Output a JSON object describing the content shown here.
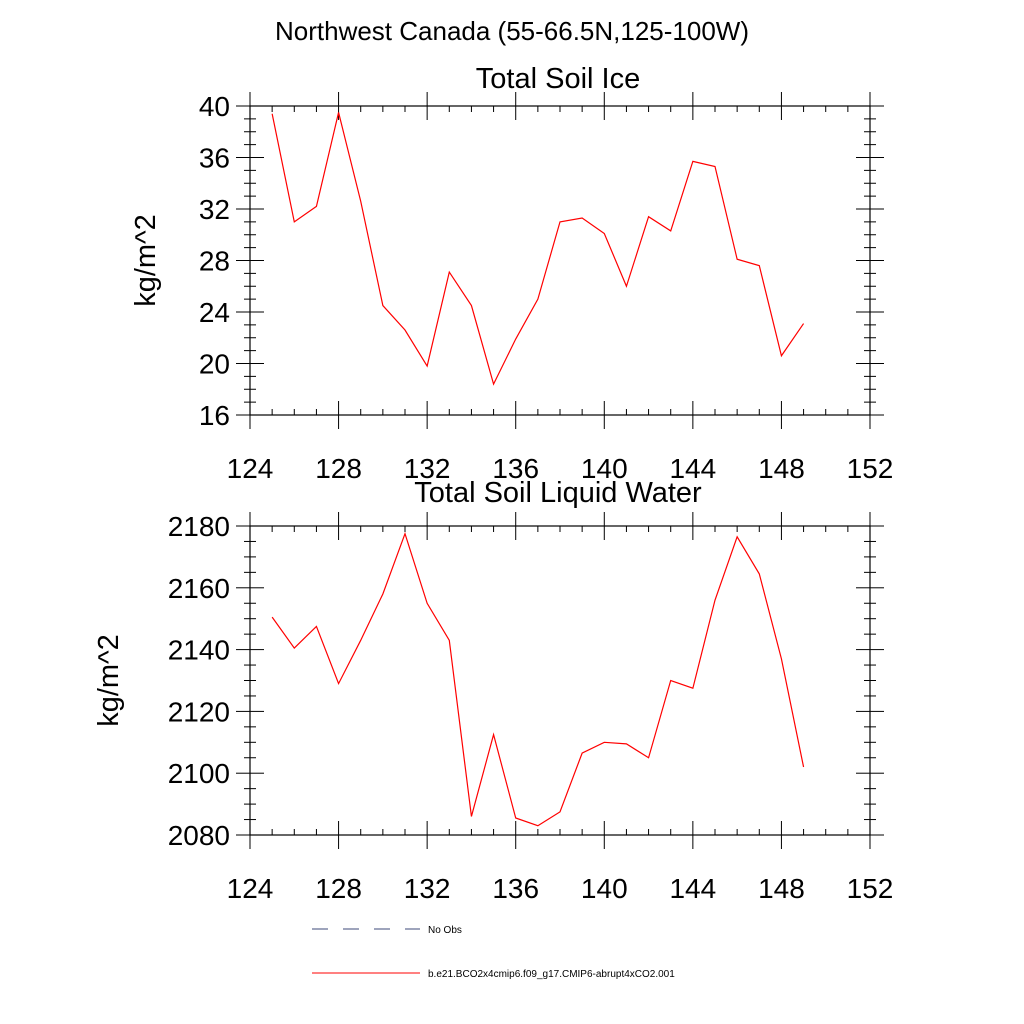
{
  "figure": {
    "title": "Northwest Canada (55-66.5N,125-100W)"
  },
  "chart_data": [
    {
      "type": "line",
      "title": "Total Soil Ice",
      "xlabel": "",
      "ylabel": "kg/m^2",
      "xlim": [
        124,
        152
      ],
      "ylim": [
        16,
        40
      ],
      "xticks": [
        124,
        128,
        132,
        136,
        140,
        144,
        148,
        152
      ],
      "yticks": [
        16,
        20,
        24,
        28,
        32,
        36,
        40
      ],
      "x": [
        125,
        126,
        127,
        128,
        129,
        130,
        131,
        132,
        133,
        134,
        135,
        136,
        137,
        138,
        139,
        140,
        141,
        142,
        143,
        144,
        145,
        146,
        147,
        148,
        149
      ],
      "series": [
        {
          "name": "b.e21.BCO2x4cmip6.f09_g17.CMIP6-abrupt4xCO2.001",
          "color": "#ff0000",
          "values": [
            39.4,
            31.0,
            32.2,
            39.5,
            32.6,
            24.5,
            22.6,
            19.8,
            27.1,
            24.5,
            18.4,
            21.9,
            25.0,
            31.0,
            31.3,
            30.1,
            26.0,
            31.4,
            30.3,
            35.7,
            35.3,
            28.1,
            27.6,
            20.6,
            23.1
          ]
        }
      ],
      "grid": false
    },
    {
      "type": "line",
      "title": "Total Soil Liquid Water",
      "xlabel": "",
      "ylabel": "kg/m^2",
      "xlim": [
        124,
        152
      ],
      "ylim": [
        2080,
        2180
      ],
      "xticks": [
        124,
        128,
        132,
        136,
        140,
        144,
        148,
        152
      ],
      "yticks": [
        2080,
        2100,
        2120,
        2140,
        2160,
        2180
      ],
      "x": [
        125,
        126,
        127,
        128,
        129,
        130,
        131,
        132,
        133,
        134,
        135,
        136,
        137,
        138,
        139,
        140,
        141,
        142,
        143,
        144,
        145,
        146,
        147,
        148,
        149
      ],
      "series": [
        {
          "name": "b.e21.BCO2x4cmip6.f09_g17.CMIP6-abrupt4xCO2.001",
          "color": "#ff0000",
          "values": [
            2150.5,
            2140.5,
            2147.5,
            2129.0,
            2143.0,
            2158.0,
            2177.5,
            2155.0,
            2143.0,
            2086.0,
            2112.5,
            2085.5,
            2083.0,
            2087.5,
            2106.5,
            2110.0,
            2109.5,
            2105.0,
            2130.0,
            2127.5,
            2156.0,
            2176.5,
            2164.5,
            2137.0,
            2102.0
          ]
        }
      ],
      "grid": false
    }
  ],
  "legend": {
    "placement": "bottom",
    "items": [
      {
        "label": "No Obs",
        "color": "#3c4a7a",
        "style": "dashed"
      },
      {
        "label": "b.e21.BCO2x4cmip6.f09_g17.CMIP6-abrupt4xCO2.001",
        "color": "#ff0000",
        "style": "solid"
      }
    ]
  }
}
